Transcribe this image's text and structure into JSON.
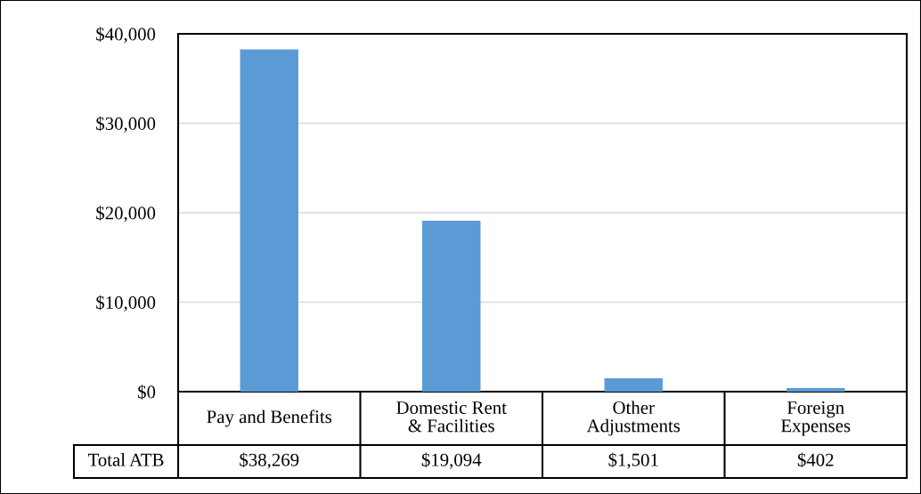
{
  "chart_data": {
    "type": "bar",
    "categories": [
      "Pay and Benefits",
      "Domestic Rent\n& Facilities",
      "Other\nAdjustments",
      "Foreign\nExpenses"
    ],
    "series": [
      {
        "name": "Total ATB",
        "color": "#5b9bd5",
        "values": [
          38269,
          19094,
          1501,
          402
        ],
        "value_labels": [
          "$38,269",
          "$19,094",
          "$1,501",
          "$402"
        ]
      }
    ],
    "ylim": [
      0,
      40000
    ],
    "yticks": [
      {
        "value": 0,
        "label": "$0"
      },
      {
        "value": 10000,
        "label": "$10,000"
      },
      {
        "value": 20000,
        "label": "$20,000"
      },
      {
        "value": 30000,
        "label": "$30,000"
      },
      {
        "value": 40000,
        "label": "$40,000"
      }
    ],
    "grid": "y",
    "legend": false
  }
}
